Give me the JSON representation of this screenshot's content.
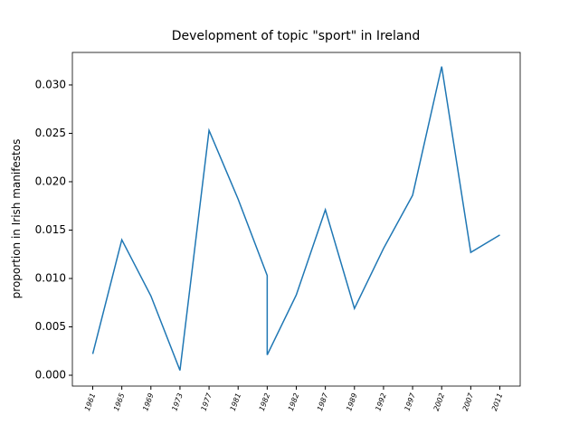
{
  "chart_data": {
    "type": "line",
    "title": "Development of topic \"sport\" in Ireland",
    "y_label": "proportion in Irish manifestos",
    "x": [
      0,
      1,
      2,
      3,
      4,
      5,
      6,
      6,
      7,
      8,
      9,
      10,
      11,
      12,
      13,
      14
    ],
    "series": [
      {
        "name": "sport",
        "color": "#1f77b4",
        "values": [
          0.0022,
          0.014,
          0.0082,
          0.0005,
          0.0253,
          0.0182,
          0.0103,
          0.0021,
          0.0083,
          0.0171,
          0.0069,
          0.0131,
          0.0186,
          0.0319,
          0.0127,
          0.0145
        ]
      }
    ],
    "xlim": [
      -0.7,
      14.7
    ],
    "xticks": [
      {
        "value": 0,
        "label": "1961"
      },
      {
        "value": 1,
        "label": "1965"
      },
      {
        "value": 2,
        "label": "1969"
      },
      {
        "value": 3,
        "label": "1973"
      },
      {
        "value": 4,
        "label": "1977"
      },
      {
        "value": 5,
        "label": "1981"
      },
      {
        "value": 6,
        "label": "1982"
      },
      {
        "value": 7,
        "label": "1982"
      },
      {
        "value": 8,
        "label": "1987"
      },
      {
        "value": 9,
        "label": "1989"
      },
      {
        "value": 10,
        "label": "1992"
      },
      {
        "value": 11,
        "label": "1997"
      },
      {
        "value": 12,
        "label": "2002"
      },
      {
        "value": 13,
        "label": "2007"
      },
      {
        "value": 14,
        "label": "2011"
      }
    ],
    "ylim": [
      -0.00112,
      0.03336
    ],
    "yticks": [
      {
        "value": 0,
        "label": "0.000"
      },
      {
        "value": 0.005,
        "label": "0.005"
      },
      {
        "value": 0.01,
        "label": "0.010"
      },
      {
        "value": 0.015,
        "label": "0.015"
      },
      {
        "value": 0.02,
        "label": "0.020"
      },
      {
        "value": 0.025,
        "label": "0.025"
      },
      {
        "value": 0.03,
        "label": "0.030"
      }
    ]
  }
}
